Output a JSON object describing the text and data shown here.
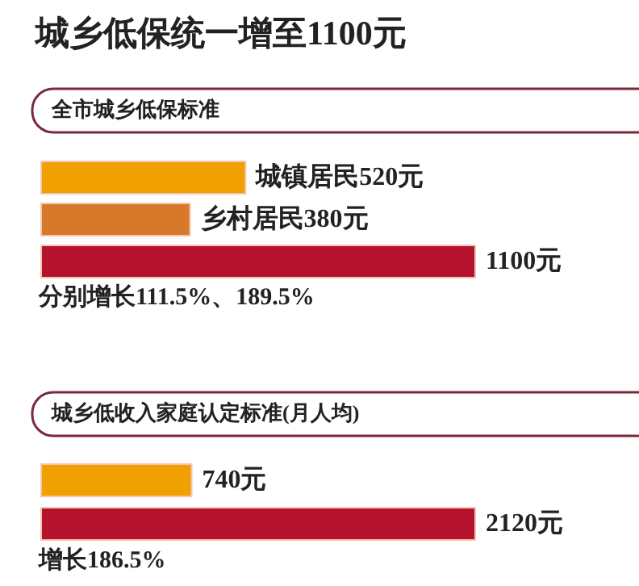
{
  "chart_data": [
    {
      "type": "bar",
      "orientation": "horizontal",
      "title": "城乡低保统一增至1100元",
      "subtitle": "全市城乡低保标准",
      "categories": [
        null,
        null,
        null
      ],
      "values": [
        520,
        380,
        1100
      ],
      "colors": [
        "#f0a000",
        "#d8782a",
        "#b5122e"
      ],
      "value_labels": [
        "城镇居民520元",
        "乡村居民380元",
        "1100元"
      ],
      "annotations": [
        "分别增长111.5%、189.5%"
      ]
    },
    {
      "type": "bar",
      "orientation": "horizontal",
      "title": "城乡低收入家庭认定标准(月人均)",
      "categories": [
        null,
        null
      ],
      "values": [
        740,
        2120
      ],
      "colors": [
        "#f0a000",
        "#b5122e"
      ],
      "value_labels": [
        "740元",
        "2120元"
      ],
      "annotations": [
        "增长186.5%"
      ]
    }
  ]
}
